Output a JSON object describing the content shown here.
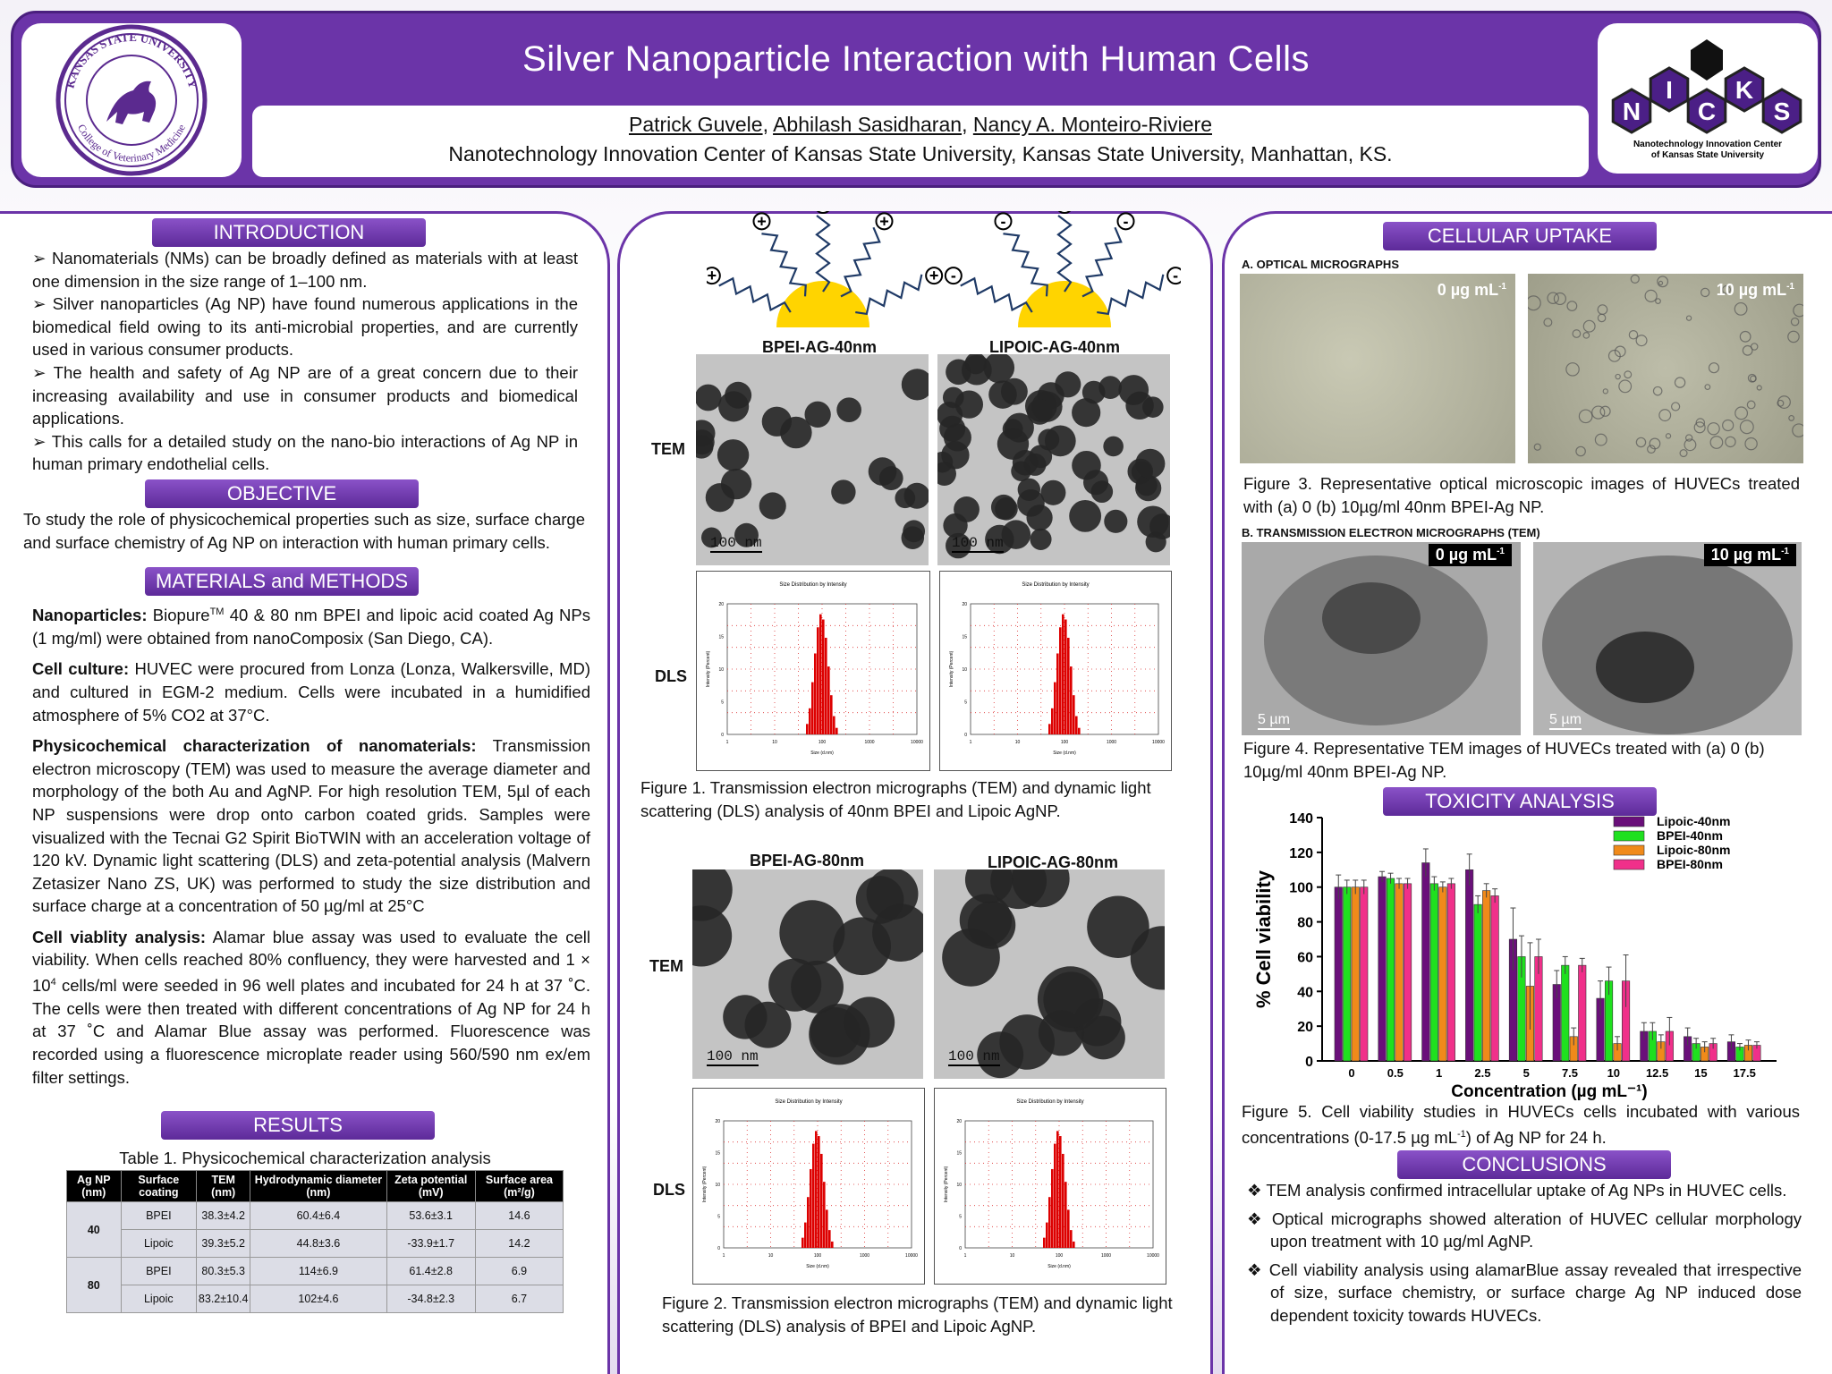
{
  "header": {
    "title": "Silver Nanoparticle Interaction with Human Cells",
    "authors": [
      "Patrick Guvele",
      ", ",
      "Abhilash Sasidharan",
      ", ",
      "Nancy A. Monteiro-Riviere"
    ],
    "affiliation": "Nanotechnology Innovation  Center of Kansas State University, Kansas State University, Manhattan, KS.",
    "left_logo": {
      "ring_text": "KANSAS STATE UNIVERSITY",
      "lower_text": "College of Veterinary Medicine"
    },
    "right_logo": {
      "letters": [
        "N",
        "I",
        "C",
        "K",
        "S"
      ],
      "caption_line1": "Nanotechnology Innovation Center",
      "caption_line2": "of Kansas State University"
    }
  },
  "introduction": {
    "heading": "INTRODUCTION",
    "bullets": [
      "➢ Nanomaterials (NMs) can be broadly defined as materials with at least one dimension in the size range of 1–100 nm.",
      "➢ Silver nanoparticles (Ag NP) have found numerous applications in the biomedical field owing to its anti-microbial properties, and are currently used in various consumer products.",
      "➢ The health and safety of Ag NP are of a great concern due to their increasing availability and use in consumer products and biomedical applications.",
      "➢ This calls for a detailed study on the nano-bio interactions of Ag NP in human primary endothelial cells."
    ]
  },
  "objective": {
    "heading": "OBJECTIVE",
    "text": "To study the role of physicochemical properties such as size, surface charge and surface chemistry of Ag NP on interaction with human primary cells."
  },
  "methods": {
    "heading": "MATERIALS and METHODS",
    "nano_label": "Nanoparticles:",
    "nano_pre": " Biopure",
    "nano_sup": "TM",
    "nano_post": " 40 & 80 nm BPEI and lipoic acid coated Ag NPs (1 mg/ml) were obtained from nanoComposix (San Diego, CA).",
    "culture_label": "Cell culture:",
    "culture_text": " HUVEC were procured from Lonza (Lonza, Walkersville, MD) and cultured in EGM-2 medium. Cells were incubated in a humidified atmosphere of 5% CO2 at 37°C.",
    "physchem_label": "Physicochemical characterization of nanomaterials:",
    "physchem_text": " Transmission electron microscopy (TEM) was used to measure the average diameter and morphology of the both Au and AgNP.  For high resolution TEM, 5µl of each NP suspensions were drop onto carbon coated grids. Samples were visualized with the Tecnai G2 Spirit BioTWIN with an acceleration voltage of 120 kV.  Dynamic light scattering (DLS) and zeta-potential analysis (Malvern Zetasizer Nano ZS, UK) was performed to study the size distribution and surface charge at a concentration of 50 µg/ml  at 25°C",
    "viability_label": "Cell viablity analysis:",
    "viability_pre": " Alamar blue assay was used to evaluate the cell viability. When cells reached 80% confluency, they were harvested and 1 × 10",
    "viability_sup": "4",
    "viability_post": " cells/ml were seeded in 96 well plates and incubated for 24 h at 37 ˚C.  The cells were then treated with different concentrations of Ag NP for 24 h at 37 ˚C and Alamar Blue assay was performed. Fluorescence was recorded using a fluorescence microplate reader using 560/590 nm ex/em filter settings."
  },
  "results": {
    "heading": "RESULTS",
    "table_caption": "Table 1. Physicochemical characterization analysis",
    "columns": [
      "Ag NP (nm)",
      "Surface coating",
      "TEM (nm)",
      "Hydrodynamic diameter (nm)",
      "Zeta potential (mV)",
      "Surface area (m²/g)"
    ],
    "groups": [
      {
        "size": "40",
        "rows": [
          [
            "BPEI",
            "38.3±4.2",
            "60.4±6.4",
            "53.6±3.1",
            "14.6"
          ],
          [
            "Lipoic",
            "39.3±5.2",
            "44.8±3.6",
            "-33.9±1.7",
            "14.2"
          ]
        ]
      },
      {
        "size": "80",
        "rows": [
          [
            "BPEI",
            "80.3±5.3",
            "114±6.9",
            "61.4±2.8",
            "6.9"
          ],
          [
            "Lipoic",
            "83.2±10.4",
            "102±4.6",
            "-34.8±2.3",
            "6.7"
          ]
        ]
      }
    ]
  },
  "middle": {
    "plus_sign": "+",
    "minus_sign": "-",
    "label_bpei40": "BPEI-AG-40nm",
    "label_lipoic40": "LIPOIC-AG-40nm",
    "label_bpei80": "BPEI-AG-80nm",
    "label_lipoic80": "LIPOIC-AG-80nm",
    "row_tem": "TEM",
    "row_dls": "DLS",
    "scale": "100 nm",
    "dls_title": "Size Distribution by Intensity",
    "dls_ylabel": "Intensity (Percent)",
    "dls_xlabel": "Size (d.nm)",
    "dls_xticks": [
      "1",
      "10",
      "100",
      "1000",
      "10000"
    ],
    "dls_yticks": [
      "0",
      "5",
      "10",
      "15",
      "20"
    ],
    "fig1_caption": "Figure 1.  Transmission electron micrographs (TEM) and dynamic light scattering (DLS) analysis of  40nm BPEI and Lipoic AgNP.",
    "fig2_caption": "Figure 2.  Transmission electron micrographs (TEM) and dynamic light scattering (DLS) analysis of  BPEI and Lipoic AgNP."
  },
  "uptake": {
    "heading": "CELLULAR UPTAKE",
    "sub_a": "A. OPTICAL MICROGRAPHS",
    "dose0_value": "0 µg mL",
    "dose10_value": "10 µg mL",
    "dose_sup": "-1",
    "fig3_caption": "Figure 3. Representative optical microscopic images of HUVECs treated with  (a) 0 (b) 10µg/ml 40nm BPEI-Ag NP.",
    "sub_b": "B. TRANSMISSION ELECTRON MICROGRAPHS (TEM)",
    "scale": "5  µm",
    "fig4_caption": "Figure 4. Representative TEM images of HUVECs treated with  (a) 0 (b) 10µg/ml 40nm BPEI-Ag NP."
  },
  "toxicity": {
    "heading": "TOXICITY ANALYSIS",
    "fig5_caption_pre": "Figure 5. Cell viability studies in HUVECs cells incubated with various concentrations (0-17.5 µg mL",
    "fig5_caption_sup": "-1",
    "fig5_caption_post": ") of Ag NP for 24 h."
  },
  "chart_data": {
    "type": "bar",
    "title": "",
    "xlabel": "Concentration (µg mL⁻¹)",
    "ylabel": "% Cell viability",
    "categories": [
      "0",
      "0.5",
      "1",
      "2.5",
      "5",
      "7.5",
      "10",
      "12.5",
      "15",
      "17.5"
    ],
    "ylim": [
      0,
      140
    ],
    "yticks": [
      0,
      20,
      40,
      60,
      80,
      100,
      120,
      140
    ],
    "legend_position": "top-right",
    "series": [
      {
        "name": "Lipoic-40nm",
        "color": "#6a0f7a",
        "values": [
          100,
          106,
          114,
          110,
          70,
          44,
          36,
          17,
          14,
          11
        ],
        "errors": [
          7,
          3,
          8,
          9,
          18,
          8,
          10,
          5,
          5,
          4
        ]
      },
      {
        "name": "BPEI-40nm",
        "color": "#1fe01f",
        "values": [
          100,
          105,
          102,
          90,
          60,
          55,
          46,
          17,
          10,
          8
        ],
        "errors": [
          4,
          3,
          4,
          5,
          12,
          5,
          8,
          5,
          3,
          2
        ]
      },
      {
        "name": "Lipoic-80nm",
        "color": "#f08a1a",
        "values": [
          100,
          102,
          100,
          98,
          43,
          14,
          10,
          11,
          8,
          9
        ],
        "errors": [
          4,
          3,
          3,
          4,
          25,
          5,
          4,
          4,
          3,
          3
        ]
      },
      {
        "name": "BPEI-80nm",
        "color": "#f0308a",
        "values": [
          100,
          102,
          102,
          95,
          60,
          55,
          46,
          17,
          10,
          9
        ],
        "errors": [
          4,
          3,
          3,
          4,
          10,
          4,
          15,
          8,
          3,
          2
        ]
      }
    ]
  },
  "conclusions": {
    "heading": "CONCLUSIONS",
    "bullets": [
      "❖ TEM analysis confirmed intracellular uptake of Ag NPs in HUVEC cells.",
      "❖ Optical micrographs showed alteration of HUVEC cellular morphology upon treatment with 10 µg/ml AgNP.",
      "❖ Cell viability analysis using alamarBlue assay revealed that irrespective of size, surface chemistry, or surface charge Ag NP induced dose dependent toxicity towards HUVECs."
    ]
  }
}
